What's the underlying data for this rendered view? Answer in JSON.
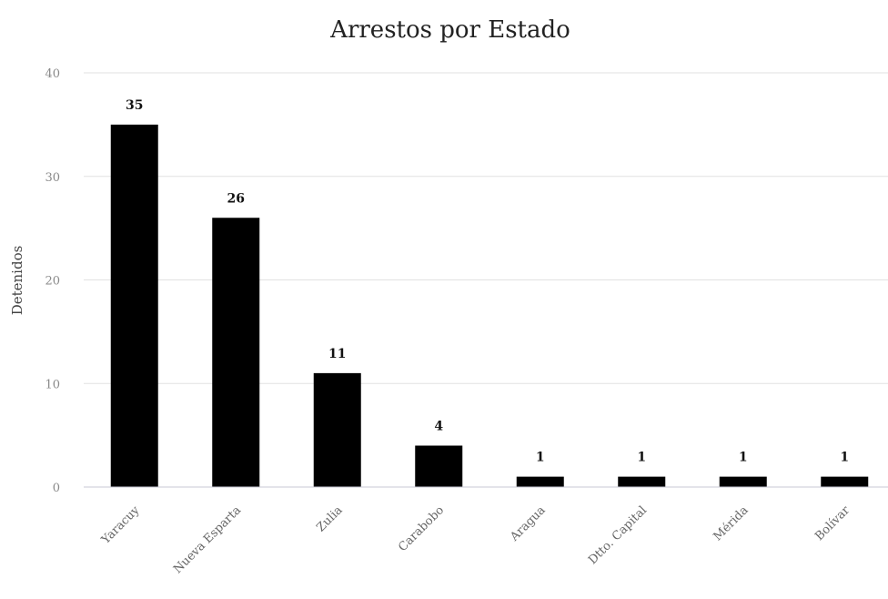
{
  "chart_data": {
    "type": "bar",
    "title": "Arrestos por Estado",
    "xlabel": "",
    "ylabel": "Detenidos",
    "ylim": [
      0,
      40
    ],
    "yticks": [
      0,
      10,
      20,
      30,
      40
    ],
    "grid": true,
    "categories": [
      "Yaracuy",
      "Nueva Esparta",
      "Zulia",
      "Carabobo",
      "Aragua",
      "Dtto. Capital",
      "Mérida",
      "Bolívar"
    ],
    "values": [
      35,
      26,
      11,
      4,
      1,
      1,
      1,
      1
    ],
    "data_labels": [
      "35",
      "26",
      "11",
      "4",
      "1",
      "1",
      "1",
      "1"
    ],
    "bar_color": "#000000"
  }
}
